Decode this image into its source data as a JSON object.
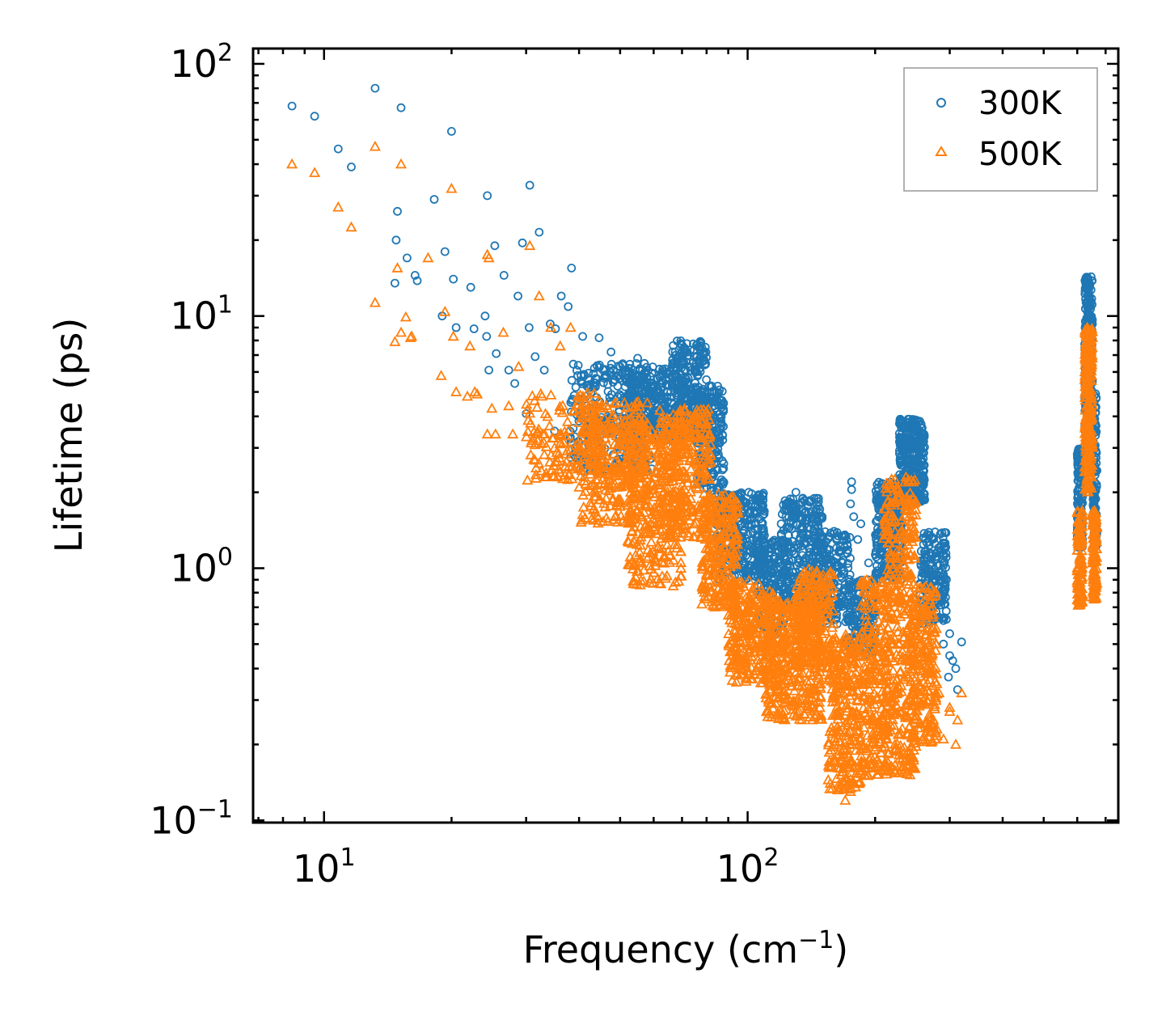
{
  "chart_data": {
    "type": "scatter",
    "title": "",
    "xlabel": "Frequency (cm",
    "xlabel_sup": "−1",
    "xlabel_end": ")",
    "ylabel": "Lifetime (ps)",
    "xscale": "log",
    "yscale": "log",
    "xlim": [
      6.8,
      750
    ],
    "ylim": [
      0.098,
      115
    ],
    "xticks": [
      {
        "base": "10",
        "exp": "1",
        "value": 10
      },
      {
        "base": "10",
        "exp": "2",
        "value": 100
      }
    ],
    "yticks": [
      {
        "base": "10",
        "exp": "−1",
        "value": 0.1
      },
      {
        "base": "10",
        "exp": "0",
        "value": 1
      },
      {
        "base": "10",
        "exp": "1",
        "value": 10
      },
      {
        "base": "10",
        "exp": "2",
        "value": 100
      }
    ],
    "legend": {
      "position": "top-right",
      "entries": [
        "300K",
        "500K"
      ]
    },
    "colors": {
      "300K": "#1f77b4",
      "500K": "#ff7f0e"
    },
    "series": [
      {
        "name": "300K",
        "marker": "circle-open",
        "points": [
          [
            8.4,
            68
          ],
          [
            9.5,
            62
          ],
          [
            10.8,
            46
          ],
          [
            11.6,
            39
          ],
          [
            13.2,
            80
          ],
          [
            15.2,
            67
          ],
          [
            20,
            54
          ],
          [
            14.9,
            26
          ],
          [
            14.8,
            20
          ],
          [
            15.7,
            17
          ],
          [
            16.4,
            14.5
          ],
          [
            18.2,
            29
          ],
          [
            24.3,
            30
          ],
          [
            25.3,
            19
          ],
          [
            26.6,
            14.5
          ],
          [
            30.6,
            33
          ],
          [
            32.2,
            21.5
          ],
          [
            29.4,
            19.5
          ],
          [
            38.4,
            15.5
          ],
          [
            19.3,
            18
          ],
          [
            20.2,
            14
          ],
          [
            22.2,
            13
          ],
          [
            14.7,
            13.5
          ],
          [
            16.6,
            13.8
          ],
          [
            19,
            10
          ],
          [
            20.5,
            9
          ],
          [
            22.6,
            8.9
          ],
          [
            24,
            10
          ],
          [
            24.2,
            8.3
          ],
          [
            25.5,
            7.1
          ],
          [
            24.5,
            6.1
          ],
          [
            27.3,
            6.1
          ],
          [
            30.5,
            9
          ],
          [
            34.2,
            9.3
          ],
          [
            36.3,
            12
          ],
          [
            35.2,
            8.9
          ],
          [
            40.8,
            8.3
          ],
          [
            44.6,
            8.2
          ],
          [
            47.6,
            7.2
          ],
          [
            55,
            6.8
          ],
          [
            50,
            6.3
          ],
          [
            30,
            4.1
          ],
          [
            35,
            3.5
          ],
          [
            37.7,
            10.9
          ],
          [
            28.7,
            12
          ],
          [
            31.5,
            6.9
          ],
          [
            33.1,
            6.1
          ],
          [
            28.2,
            5.4
          ],
          [
            112,
            0.45
          ],
          [
            120,
            1.5
          ],
          [
            130,
            2
          ],
          [
            137,
            1.5
          ],
          [
            150,
            1.6
          ],
          [
            160,
            1.4
          ],
          [
            176,
            2.2
          ],
          [
            176,
            2.05
          ],
          [
            193,
            1.05
          ],
          [
            186,
            0.7
          ],
          [
            200,
            0.55
          ],
          [
            280,
            0.74
          ],
          [
            290,
            0.62
          ],
          [
            300,
            0.55
          ],
          [
            310,
            0.4
          ],
          [
            320,
            0.51
          ],
          [
            313,
            0.33
          ],
          [
            305,
            0.43
          ],
          [
            298,
            0.37
          ],
          [
            175,
            1.8
          ],
          [
            178,
            1.6
          ],
          [
            182,
            1.3
          ],
          [
            185,
            1.5
          ],
          [
            188,
            0.65
          ],
          [
            120,
            0.6
          ],
          [
            125,
            0.7
          ],
          [
            145,
            0.85
          ],
          [
            155,
            0.75
          ],
          [
            170,
            0.5
          ],
          [
            180,
            0.55
          ],
          [
            300,
            0.45
          ],
          [
            290,
            0.5
          ],
          [
            275,
            0.62
          ],
          [
            265,
            0.7
          ],
          [
            255,
            0.68
          ]
        ],
        "clusters": [
          {
            "x_range": [
              38,
              60
            ],
            "y_range": [
              2.4,
              6.5
            ],
            "count": 320
          },
          {
            "x_range": [
              52,
              72
            ],
            "y_range": [
              3.2,
              6.3
            ],
            "count": 280
          },
          {
            "x_range": [
              66,
              80
            ],
            "y_range": [
              3.5,
              8.0
            ],
            "count": 240
          },
          {
            "x_range": [
              76,
              88
            ],
            "y_range": [
              2.0,
              5.3
            ],
            "count": 220
          },
          {
            "x_range": [
              84,
              110
            ],
            "y_range": [
              0.9,
              2.0
            ],
            "count": 300
          },
          {
            "x_range": [
              105,
              122
            ],
            "y_range": [
              0.55,
              1.3
            ],
            "count": 160
          },
          {
            "x_range": [
              120,
              150
            ],
            "y_range": [
              0.7,
              1.9
            ],
            "count": 300
          },
          {
            "x_range": [
              145,
              175
            ],
            "y_range": [
              0.6,
              1.4
            ],
            "count": 200
          },
          {
            "x_range": [
              172,
              200
            ],
            "y_range": [
              0.45,
              0.9
            ],
            "count": 150
          },
          {
            "x_range": [
              200,
              232
            ],
            "y_range": [
              0.9,
              2.2
            ],
            "count": 260
          },
          {
            "x_range": [
              228,
              262
            ],
            "y_range": [
              1.8,
              3.9
            ],
            "count": 340
          },
          {
            "x_range": [
              255,
              295
            ],
            "y_range": [
              0.6,
              1.4
            ],
            "count": 180
          },
          {
            "x_range": [
              600,
              618
            ],
            "y_range": [
              1.2,
              3.0
            ],
            "count": 130
          },
          {
            "x_range": [
              625,
              652
            ],
            "y_range": [
              3.0,
              14.5
            ],
            "count": 280
          },
          {
            "x_range": [
              652,
              668
            ],
            "y_range": [
              1.2,
              5.0
            ],
            "count": 110
          }
        ]
      },
      {
        "name": "500K",
        "marker": "triangle-open",
        "points": [
          [
            8.4,
            40
          ],
          [
            9.5,
            37
          ],
          [
            10.8,
            27
          ],
          [
            11.6,
            22.5
          ],
          [
            13.2,
            47
          ],
          [
            15.2,
            40
          ],
          [
            20,
            32
          ],
          [
            13.2,
            11.3
          ],
          [
            14.7,
            7.9
          ],
          [
            14.9,
            15.5
          ],
          [
            15.2,
            8.6
          ],
          [
            15.6,
            9.9
          ],
          [
            16,
            8.2
          ],
          [
            16.1,
            8.3
          ],
          [
            17.6,
            17
          ],
          [
            19.3,
            10.4
          ],
          [
            20.2,
            8.3
          ],
          [
            22.1,
            7.6
          ],
          [
            24.3,
            17.5
          ],
          [
            24.5,
            17
          ],
          [
            26.5,
            8.6
          ],
          [
            30.6,
            19
          ],
          [
            32.2,
            12
          ],
          [
            34.3,
            9
          ],
          [
            36.1,
            7.6
          ],
          [
            38.2,
            9
          ],
          [
            18.9,
            5.8
          ],
          [
            20.5,
            5
          ],
          [
            21.8,
            4.8
          ],
          [
            22.7,
            5.0
          ],
          [
            23,
            4.9
          ],
          [
            24.3,
            3.4
          ],
          [
            25.4,
            3.4
          ],
          [
            24.9,
            4.3
          ],
          [
            27.9,
            3.4
          ],
          [
            27.3,
            4.4
          ],
          [
            28.8,
            6.3
          ],
          [
            33.3,
            2.3
          ],
          [
            35,
            3
          ],
          [
            36,
            2.4
          ],
          [
            40,
            2.5
          ],
          [
            112,
            0.3
          ],
          [
            120,
            0.27
          ],
          [
            160,
            0.2
          ],
          [
            175,
            0.13
          ],
          [
            178,
            0.14
          ],
          [
            195,
            0.25
          ],
          [
            200,
            0.2
          ],
          [
            300,
            0.28
          ],
          [
            310,
            0.2
          ],
          [
            320,
            0.32
          ],
          [
            313,
            0.25
          ],
          [
            290,
            0.21
          ],
          [
            280,
            0.23
          ],
          [
            270,
            0.25
          ],
          [
            265,
            0.3
          ],
          [
            283,
            0.32
          ],
          [
            300,
            0.27
          ],
          [
            170,
            0.12
          ],
          [
            168,
            0.16
          ]
        ],
        "clusters": [
          {
            "x_range": [
              30,
              45
            ],
            "y_range": [
              2.2,
              5.0
            ],
            "count": 140
          },
          {
            "x_range": [
              40,
              58
            ],
            "y_range": [
              1.5,
              4.6
            ],
            "count": 330
          },
          {
            "x_range": [
              52,
              70
            ],
            "y_range": [
              0.85,
              3.6
            ],
            "count": 300
          },
          {
            "x_range": [
              62,
              82
            ],
            "y_range": [
              1.3,
              4.3
            ],
            "count": 300
          },
          {
            "x_range": [
              78,
              95
            ],
            "y_range": [
              0.7,
              2.0
            ],
            "count": 230
          },
          {
            "x_range": [
              90,
              115
            ],
            "y_range": [
              0.35,
              0.9
            ],
            "count": 280
          },
          {
            "x_range": [
              110,
              150
            ],
            "y_range": [
              0.25,
              0.75
            ],
            "count": 400
          },
          {
            "x_range": [
              130,
              160
            ],
            "y_range": [
              0.4,
              1.0
            ],
            "count": 200
          },
          {
            "x_range": [
              155,
              185
            ],
            "y_range": [
              0.13,
              0.55
            ],
            "count": 260
          },
          {
            "x_range": [
              185,
              215
            ],
            "y_range": [
              0.15,
              0.9
            ],
            "count": 260
          },
          {
            "x_range": [
              210,
              250
            ],
            "y_range": [
              0.15,
              2.3
            ],
            "count": 420
          },
          {
            "x_range": [
              245,
              280
            ],
            "y_range": [
              0.2,
              0.85
            ],
            "count": 200
          },
          {
            "x_range": [
              600,
              618
            ],
            "y_range": [
              0.7,
              1.7
            ],
            "count": 110
          },
          {
            "x_range": [
              625,
              652
            ],
            "y_range": [
              2.0,
              9.0
            ],
            "count": 240
          },
          {
            "x_range": [
              652,
              668
            ],
            "y_range": [
              0.75,
              1.7
            ],
            "count": 110
          }
        ]
      }
    ]
  }
}
